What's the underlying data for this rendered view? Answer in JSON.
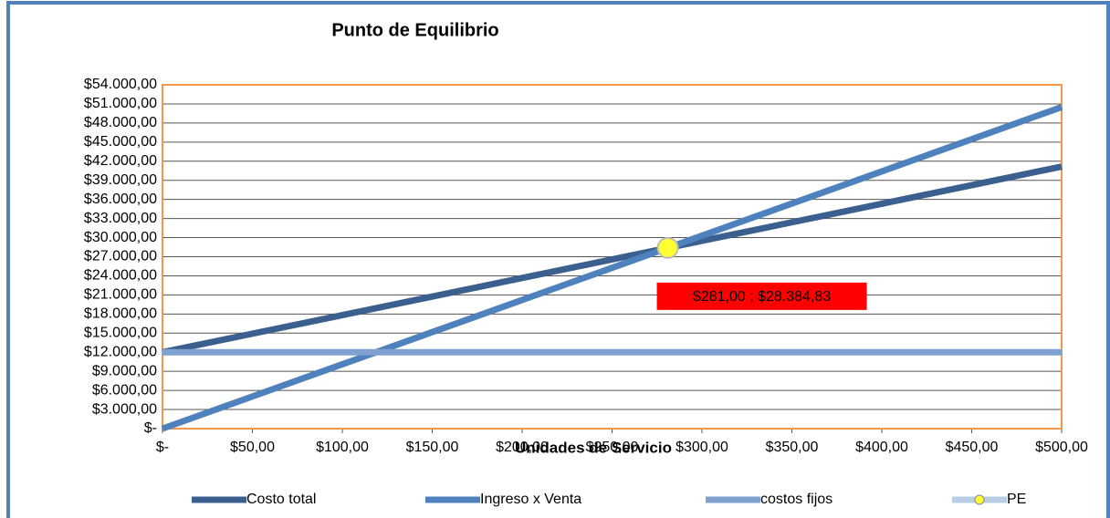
{
  "chart_data": {
    "type": "line",
    "title": "Punto de Equilibrio",
    "x_label": "Unidades de Servicio",
    "x": [
      0,
      50,
      100,
      150,
      200,
      250,
      300,
      350,
      400,
      450,
      500
    ],
    "series": [
      {
        "name": "Costo total",
        "color": "#3b5f8e",
        "values": [
          12000,
          14915,
          17831,
          20746,
          23662,
          26577,
          29493,
          32408,
          35324,
          38239,
          41155
        ]
      },
      {
        "name": "Ingreso x Venta",
        "color": "#4f81bd",
        "values": [
          0,
          5051,
          10101,
          15152,
          20202,
          25253,
          30303,
          35354,
          40404,
          45455,
          50505
        ]
      },
      {
        "name": "costos fijos",
        "color": "#7ea1cf",
        "values": [
          12000,
          12000,
          12000,
          12000,
          12000,
          12000,
          12000,
          12000,
          12000,
          12000,
          12000
        ]
      },
      {
        "name": "PE",
        "color": "#b9cde5",
        "marker_color": "#ffff33",
        "x": [
          281
        ],
        "values": [
          28384.83
        ],
        "value_labels": [
          "$281,00 ; $28.384,83"
        ]
      }
    ],
    "xlim": [
      0,
      500
    ],
    "xticks": [
      {
        "value": 0,
        "label": "$-"
      },
      {
        "value": 50,
        "label": "$50,00"
      },
      {
        "value": 100,
        "label": "$100,00"
      },
      {
        "value": 150,
        "label": "$150,00"
      },
      {
        "value": 200,
        "label": "$200,00"
      },
      {
        "value": 250,
        "label": "$250,00"
      },
      {
        "value": 300,
        "label": "$300,00"
      },
      {
        "value": 350,
        "label": "$350,00"
      },
      {
        "value": 400,
        "label": "$400,00"
      },
      {
        "value": 450,
        "label": "$450,00"
      },
      {
        "value": 500,
        "label": "$500,00"
      }
    ],
    "ylim": [
      0,
      54000
    ],
    "yticks": [
      {
        "value": 0,
        "label": "$-"
      },
      {
        "value": 3000,
        "label": "$3.000,00"
      },
      {
        "value": 6000,
        "label": "$6.000,00"
      },
      {
        "value": 9000,
        "label": "$9.000,00"
      },
      {
        "value": 12000,
        "label": "$12.000,00"
      },
      {
        "value": 15000,
        "label": "$15.000,00"
      },
      {
        "value": 18000,
        "label": "$18.000,00"
      },
      {
        "value": 21000,
        "label": "$21.000,00"
      },
      {
        "value": 24000,
        "label": "$24.000,00"
      },
      {
        "value": 27000,
        "label": "$27.000,00"
      },
      {
        "value": 30000,
        "label": "$30.000,00"
      },
      {
        "value": 33000,
        "label": "$33.000,00"
      },
      {
        "value": 36000,
        "label": "$36.000,00"
      },
      {
        "value": 39000,
        "label": "$39.000,00"
      },
      {
        "value": 42000,
        "label": "$42.000,00"
      },
      {
        "value": 45000,
        "label": "$45.000,00"
      },
      {
        "value": 48000,
        "label": "$48.000,00"
      },
      {
        "value": 51000,
        "label": "$51.000,00"
      },
      {
        "value": 54000,
        "label": "$54.000,00"
      }
    ],
    "grid": true,
    "legend": "bottom"
  }
}
